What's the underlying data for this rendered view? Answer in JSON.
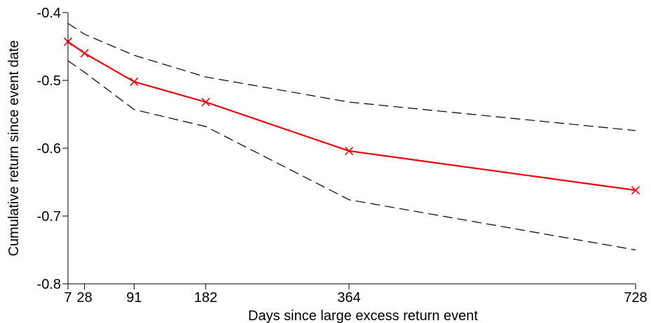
{
  "chart_data": {
    "type": "line",
    "xlabel": "Days since large excess return event",
    "ylabel": "Cumulative return since event date",
    "x": [
      7,
      28,
      91,
      182,
      364,
      728
    ],
    "x_tick_labels": [
      "7",
      "28",
      "91",
      "182",
      "364",
      "728"
    ],
    "ylim": [
      -0.8,
      -0.4
    ],
    "y_ticks": [
      -0.8,
      -0.7,
      -0.6,
      -0.5,
      -0.4
    ],
    "y_tick_labels": [
      "-0.8",
      "-0.7",
      "-0.6",
      "-0.5",
      "-0.4"
    ],
    "grid": false,
    "series": [
      {
        "role": "estimate",
        "color": "#e8000b",
        "line_style": "solid",
        "marker": "x",
        "values": [
          -0.443,
          -0.46,
          -0.502,
          -0.532,
          -0.604,
          -0.662
        ]
      },
      {
        "role": "upper-band",
        "color": "#000000",
        "line_style": "dashed",
        "marker": "none",
        "values": [
          -0.416,
          -0.432,
          -0.463,
          -0.495,
          -0.532,
          -0.574
        ]
      },
      {
        "role": "lower-band",
        "color": "#000000",
        "line_style": "dashed",
        "marker": "none",
        "values": [
          -0.471,
          -0.488,
          -0.543,
          -0.568,
          -0.676,
          -0.75
        ]
      }
    ]
  }
}
